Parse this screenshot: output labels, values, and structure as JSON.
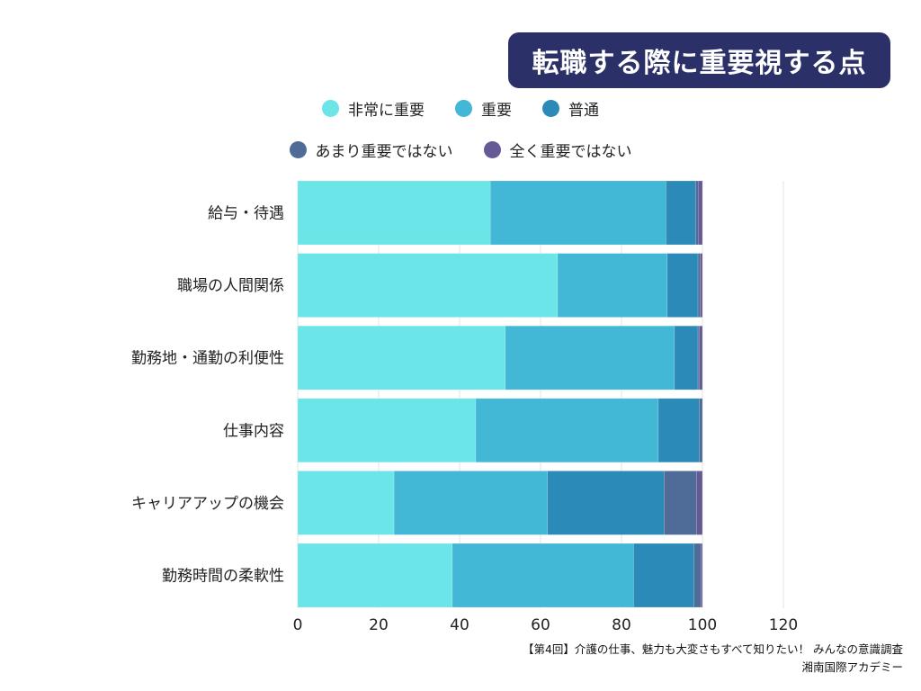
{
  "title": "転職する際に重要視する点",
  "source": {
    "line1": "【第4回】介護の仕事、魅力も大変さもすべて知りたい！ みんなの意識調査",
    "line2": "湘南国際アカデミー"
  },
  "chart_data": {
    "type": "bar",
    "orientation": "horizontal",
    "stacked": true,
    "title": "転職する際に重要視する点",
    "categories": [
      "給与・待遇",
      "職場の人間関係",
      "勤務地・通勤の利便性",
      "仕事内容",
      "キャリアアップの機会",
      "勤務時間の柔軟性"
    ],
    "series": [
      {
        "name": "非常に重要",
        "color": "#6be5e8",
        "values": [
          47.6,
          64.2,
          51.3,
          44.0,
          23.8,
          38.2
        ]
      },
      {
        "name": "重要",
        "color": "#42b7d6",
        "values": [
          43.4,
          27.1,
          41.8,
          45.1,
          37.9,
          44.8
        ]
      },
      {
        "name": "普通",
        "color": "#2c8ab8",
        "values": [
          7.3,
          7.6,
          5.8,
          10.1,
          28.8,
          14.9
        ]
      },
      {
        "name": "あまり重要ではない",
        "color": "#4f6b98",
        "values": [
          0.7,
          0.5,
          0.3,
          0.8,
          8.0,
          1.7
        ]
      },
      {
        "name": "全く重要ではない",
        "color": "#655a95",
        "values": [
          1.0,
          0.6,
          0.8,
          0.0,
          1.5,
          0.4
        ]
      }
    ],
    "xlim": [
      0,
      120
    ],
    "xticks": [
      0,
      20,
      40,
      60,
      80,
      100,
      120
    ],
    "grid": true,
    "legend_position": "top"
  }
}
